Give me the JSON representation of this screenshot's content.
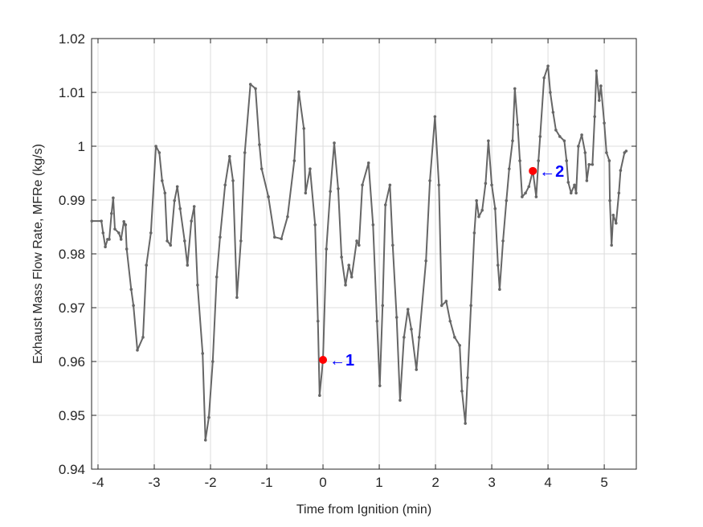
{
  "chart_data": {
    "type": "line",
    "title": "",
    "xlabel": "Time from Ignition (min)",
    "ylabel": "Exhaust Mass Flow Rate, MFRe (kg/s)",
    "xlim": [
      -4.114,
      5.57
    ],
    "ylim": [
      0.94,
      1.02
    ],
    "grid": true,
    "x_ticks": [
      -4,
      -3,
      -2,
      -1,
      0,
      1,
      2,
      3,
      4,
      5
    ],
    "x_tick_labels": [
      "-4",
      "-3",
      "-2",
      "-1",
      "0",
      "1",
      "2",
      "3",
      "4",
      "5"
    ],
    "y_ticks": [
      0.94,
      0.95,
      0.96,
      0.97,
      0.98,
      0.99,
      1.0,
      1.01,
      1.02
    ],
    "y_tick_labels": [
      "0.94",
      "0.95",
      "0.96",
      "0.97",
      "0.98",
      "0.99",
      "1",
      "1.01",
      "1.02"
    ],
    "line_color": "#666666",
    "marker_color": "#ff0000",
    "annotation_color": "#0000ff",
    "series": [
      {
        "x": [
          -4.11,
          -3.94,
          -3.91,
          -3.87,
          -3.83,
          -3.8,
          -3.76,
          -3.73,
          -3.7,
          -3.63,
          -3.59,
          -3.54,
          -3.51,
          -3.49,
          -3.41,
          -3.37,
          -3.3,
          -3.2,
          -3.14,
          -3.06,
          -2.97,
          -2.91,
          -2.86,
          -2.81,
          -2.77,
          -2.71,
          -2.64,
          -2.59,
          -2.54,
          -2.46,
          -2.41,
          -2.34,
          -2.29,
          -2.23,
          -2.14,
          -2.09,
          -2.03,
          -1.96,
          -1.89,
          -1.83,
          -1.74,
          -1.66,
          -1.6,
          -1.53,
          -1.46,
          -1.39,
          -1.29,
          -1.2,
          -1.13,
          -1.09,
          -0.97,
          -0.86,
          -0.74,
          -0.63,
          -0.51,
          -0.43,
          -0.34,
          -0.31,
          -0.23,
          -0.14,
          -0.09,
          -0.06,
          0.0,
          0.06,
          0.13,
          0.2,
          0.27,
          0.33,
          0.4,
          0.46,
          0.51,
          0.6,
          0.64,
          0.7,
          0.81,
          0.89,
          0.96,
          1.01,
          1.06,
          1.11,
          1.19,
          1.24,
          1.31,
          1.37,
          1.44,
          1.51,
          1.57,
          1.66,
          1.71,
          1.83,
          1.9,
          1.99,
          2.06,
          2.11,
          2.19,
          2.26,
          2.34,
          2.43,
          2.47,
          2.53,
          2.57,
          2.63,
          2.69,
          2.73,
          2.77,
          2.83,
          2.89,
          2.94,
          3.0,
          3.06,
          3.11,
          3.14,
          3.2,
          3.26,
          3.31,
          3.37,
          3.41,
          3.46,
          3.5,
          3.54,
          3.6,
          3.66,
          3.73,
          3.79,
          3.83,
          3.86,
          3.93,
          4.0,
          4.04,
          4.09,
          4.14,
          4.21,
          4.29,
          4.33,
          4.36,
          4.41,
          4.47,
          4.5,
          4.54,
          4.6,
          4.66,
          4.69,
          4.73,
          4.79,
          4.83,
          4.86,
          4.91,
          4.94,
          5.0,
          5.04,
          5.09,
          5.1,
          5.13,
          5.16,
          5.21,
          5.26,
          5.29,
          5.36,
          5.39
        ],
        "y": [
          0.9861,
          0.9861,
          0.9839,
          0.9813,
          0.9827,
          0.9827,
          0.9875,
          0.9904,
          0.9846,
          0.9839,
          0.9827,
          0.986,
          0.9854,
          0.9809,
          0.9734,
          0.9704,
          0.9621,
          0.9645,
          0.9779,
          0.9839,
          1.0,
          0.9988,
          0.9936,
          0.9913,
          0.9824,
          0.9816,
          0.9899,
          0.9925,
          0.9884,
          0.9824,
          0.9779,
          0.9861,
          0.9888,
          0.9742,
          0.9615,
          0.9454,
          0.9496,
          0.96,
          0.9757,
          0.9831,
          0.9928,
          0.9981,
          0.9936,
          0.9719,
          0.9824,
          0.9988,
          1.0115,
          1.0107,
          1.0003,
          0.9958,
          0.9906,
          0.9831,
          0.9828,
          0.9869,
          0.9973,
          1.0101,
          1.0033,
          0.9913,
          0.9958,
          0.9854,
          0.9675,
          0.9537,
          0.9603,
          0.9809,
          0.9916,
          1.0006,
          0.9921,
          0.9794,
          0.9742,
          0.9779,
          0.9757,
          0.9824,
          0.9816,
          0.9928,
          0.9969,
          0.9854,
          0.9675,
          0.9555,
          0.9704,
          0.9891,
          0.9928,
          0.9816,
          0.9682,
          0.9528,
          0.9645,
          0.9697,
          0.966,
          0.9585,
          0.9645,
          0.9787,
          0.9936,
          1.0055,
          0.9928,
          0.9704,
          0.9712,
          0.9675,
          0.9645,
          0.963,
          0.9545,
          0.9485,
          0.957,
          0.9704,
          0.9839,
          0.9899,
          0.9869,
          0.9881,
          0.9931,
          1.001,
          0.9928,
          0.9884,
          0.9779,
          0.9734,
          0.9824,
          0.9899,
          0.9958,
          1.001,
          1.0107,
          1.004,
          0.9973,
          0.9906,
          0.9913,
          0.9925,
          0.9954,
          0.9906,
          0.9973,
          1.0018,
          1.0127,
          1.0149,
          1.01,
          1.0063,
          1.003,
          1.0018,
          1.001,
          0.9973,
          0.9933,
          0.9913,
          0.9928,
          0.9913,
          1.0,
          1.0021,
          0.9988,
          0.9936,
          0.9966,
          0.9966,
          1.0055,
          1.014,
          1.0085,
          1.0112,
          1.0043,
          0.9988,
          0.9973,
          0.9899,
          0.9816,
          0.9872,
          0.9857,
          0.9913,
          0.9955,
          0.9988,
          0.9991
        ]
      }
    ],
    "annotations": [
      {
        "x": 0.0,
        "y": 0.9603,
        "label": "←1"
      },
      {
        "x": 3.73,
        "y": 0.9954,
        "label": "←2"
      }
    ]
  }
}
